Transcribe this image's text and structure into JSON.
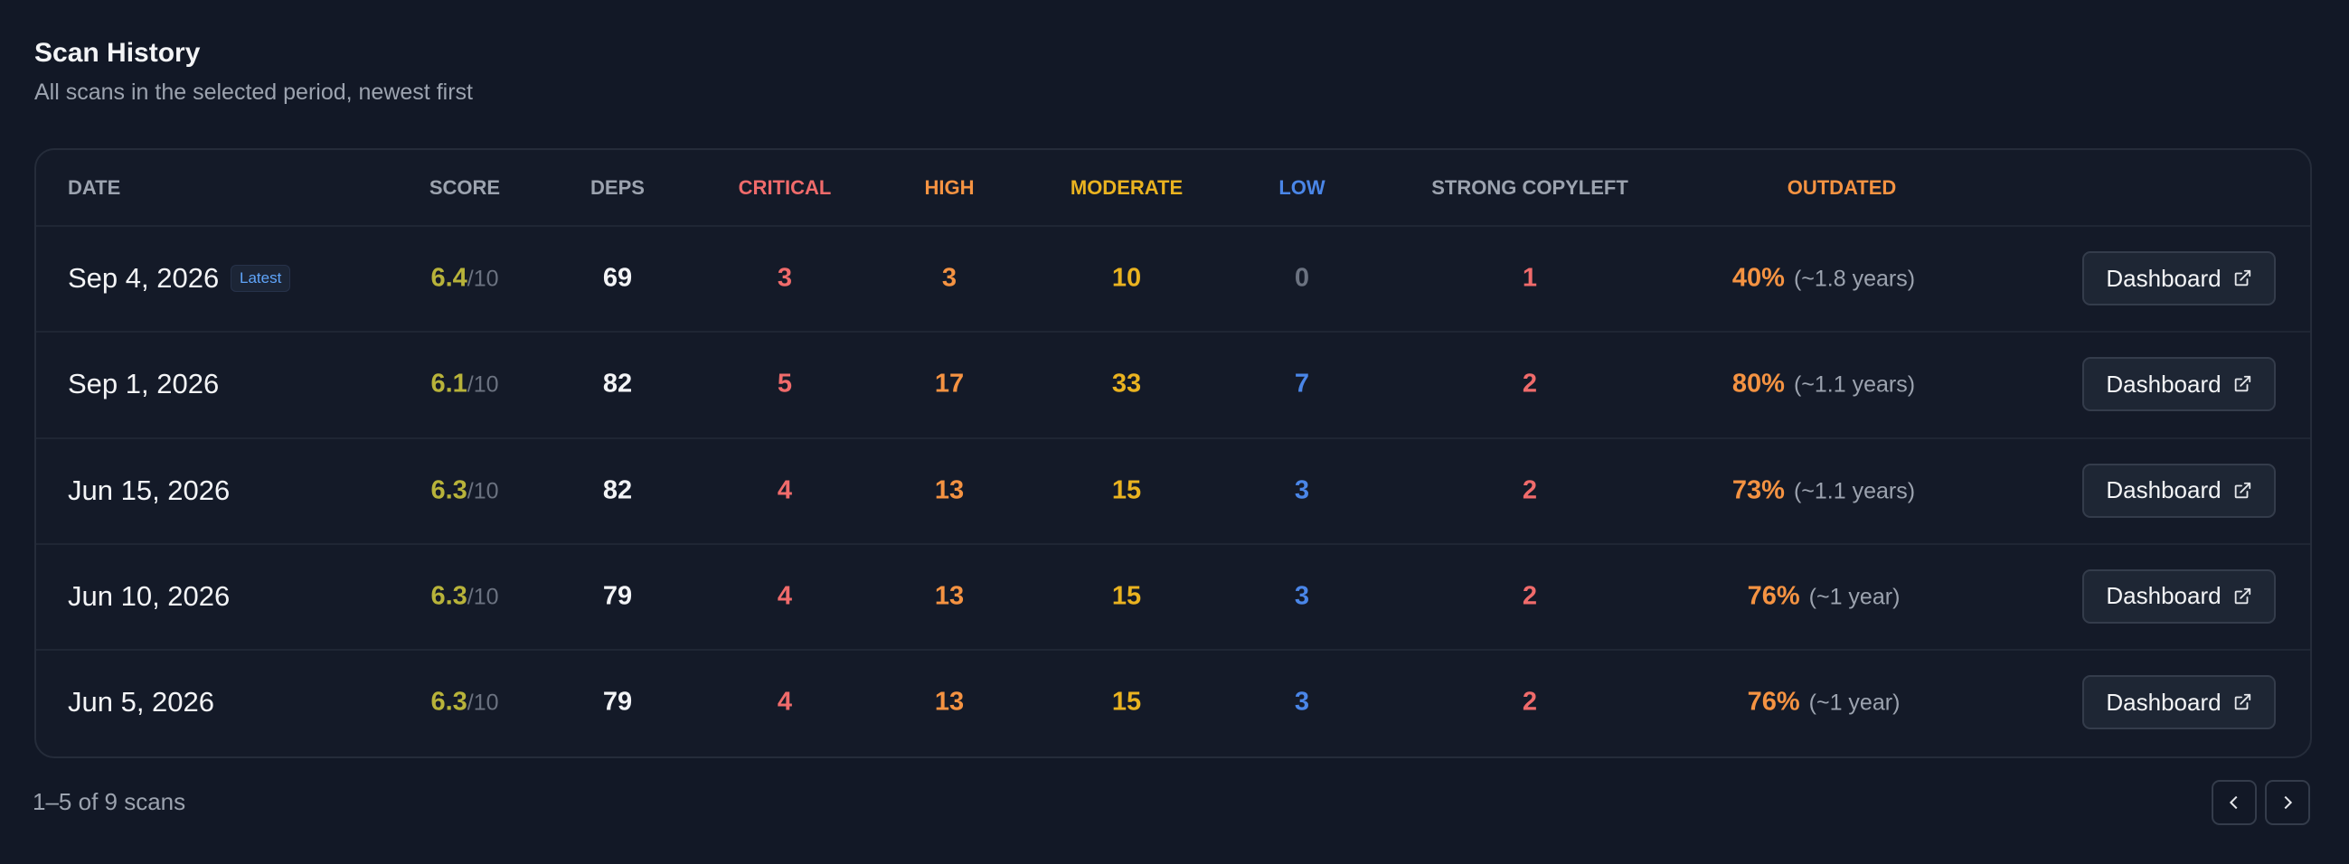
{
  "header": {
    "title": "Scan History",
    "subtitle": "All scans in the selected period, newest first"
  },
  "table": {
    "columns": [
      "DATE",
      "SCORE",
      "DEPS",
      "CRITICAL",
      "HIGH",
      "MODERATE",
      "LOW",
      "STRONG COPYLEFT",
      "OUTDATED"
    ],
    "score_max": "/10",
    "latest_badge": "Latest",
    "action": "Dashboard",
    "rows": [
      {
        "date": "Sep 4, 2026",
        "score": 6.4,
        "deps": 69,
        "critical": 3,
        "high": 3,
        "moderate": 10,
        "low": 0,
        "copyleft": 1,
        "outdated": "40%",
        "age": "(~1.8 years)"
      },
      {
        "date": "Sep 1, 2026",
        "score": 6.1,
        "deps": 82,
        "critical": 5,
        "high": 17,
        "moderate": 33,
        "low": 7,
        "copyleft": 2,
        "outdated": "80%",
        "age": "(~1.1 years)"
      },
      {
        "date": "Jun 15, 2026",
        "score": 6.3,
        "deps": 82,
        "critical": 4,
        "high": 13,
        "moderate": 15,
        "low": 3,
        "copyleft": 2,
        "outdated": "73%",
        "age": "(~1.1 years)"
      },
      {
        "date": "Jun 10, 2026",
        "score": 6.3,
        "deps": 79,
        "critical": 4,
        "high": 13,
        "moderate": 15,
        "low": 3,
        "copyleft": 2,
        "outdated": "76%",
        "age": "(~1 year)"
      },
      {
        "date": "Jun 5, 2026",
        "score": 6.3,
        "deps": 79,
        "critical": 4,
        "high": 13,
        "moderate": 15,
        "low": 3,
        "copyleft": 2,
        "outdated": "76%",
        "age": "(~1 year)"
      }
    ]
  },
  "footer": {
    "range": "1–5 of 9 scans"
  }
}
